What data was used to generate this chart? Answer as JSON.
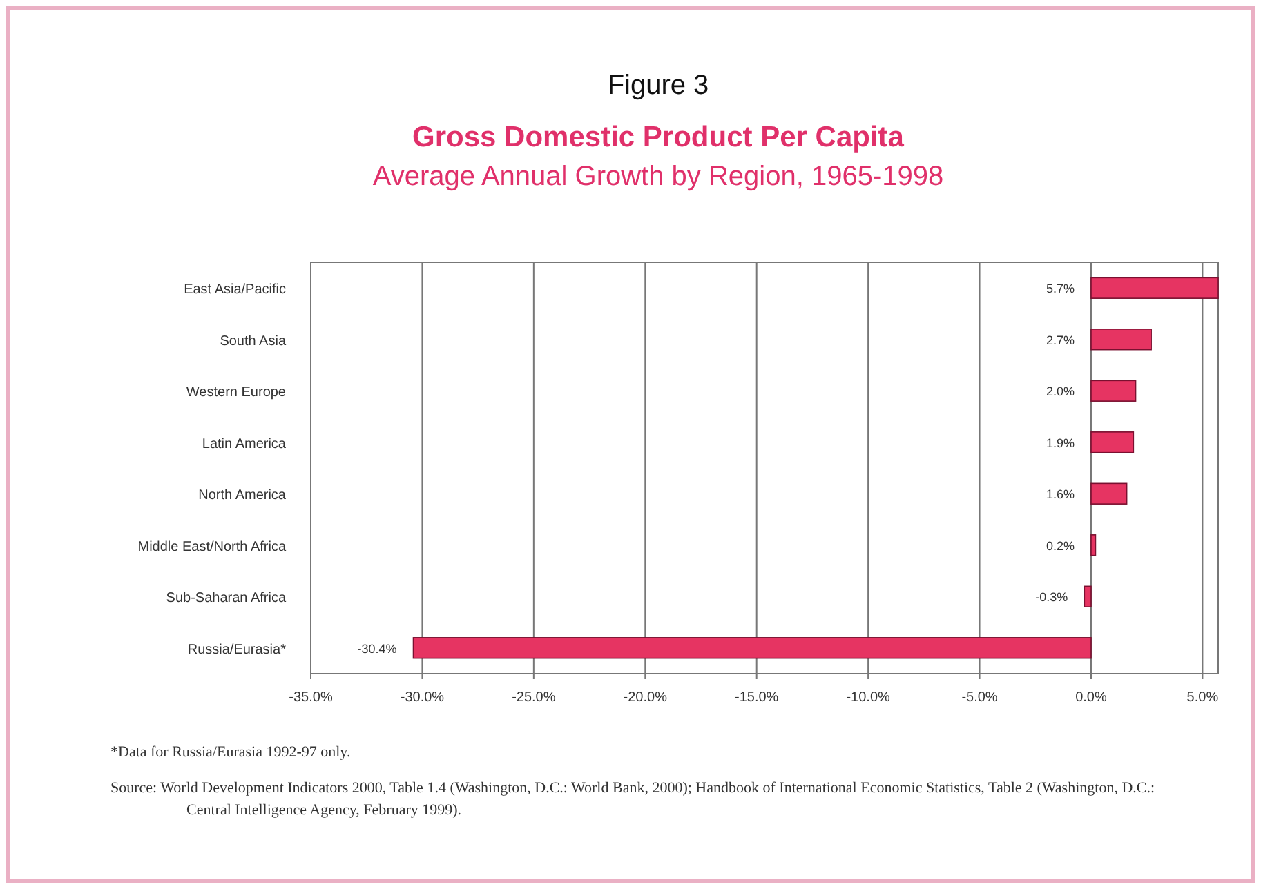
{
  "chart_data": {
    "type": "bar",
    "orientation": "horizontal",
    "title": "Figure 3",
    "subtitle": "Gross Domestic Product Per Capita\nAverage Annual Growth by Region, 1965-1998",
    "categories": [
      "East Asia/Pacific",
      "South Asia",
      "Western Europe",
      "Latin America",
      "North America",
      "Middle East/North Africa",
      "Sub-Saharan Africa",
      "Russia/Eurasia*"
    ],
    "values": [
      5.7,
      2.7,
      2.0,
      1.9,
      1.6,
      0.2,
      -0.3,
      -30.4
    ],
    "value_labels": [
      "5.7%",
      "2.7%",
      "2.0%",
      "1.9%",
      "1.6%",
      "0.2%",
      "-0.3%",
      "-30.4%"
    ],
    "color": "#e63462",
    "xlim": [
      -35,
      5.7
    ],
    "xticks": [
      {
        "value": -35,
        "label": "-35.0%"
      },
      {
        "value": -30,
        "label": "-30.0%"
      },
      {
        "value": -25,
        "label": "-25.0%"
      },
      {
        "value": -20,
        "label": "-20.0%"
      },
      {
        "value": -15,
        "label": "-15.0%"
      },
      {
        "value": -10,
        "label": "-10.0%"
      },
      {
        "value": -5,
        "label": "-5.0%"
      },
      {
        "value": 0,
        "label": "0.0%"
      },
      {
        "value": 5,
        "label": "5.0%"
      }
    ],
    "grid": "x",
    "annotations": [
      "*Data for Russia/Eurasia 1992-97 only.",
      "Source: World Development Indicators 2000, Table 1.4 (Washington, D.C.: World Bank, 2000); Handbook of International Economic Statistics, Table 2 (Washington, D.C.: Central Intelligence Agency, February 1999)."
    ]
  }
}
